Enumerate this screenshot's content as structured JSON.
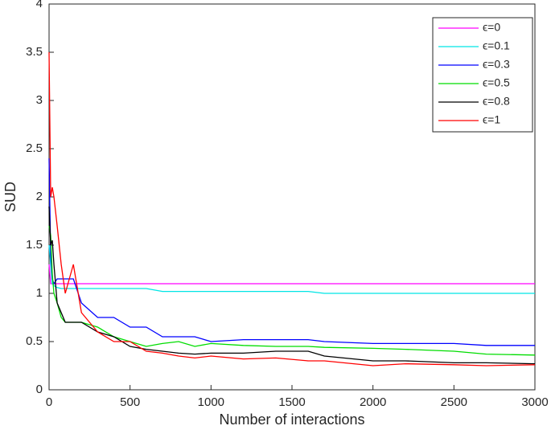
{
  "chart_data": {
    "type": "line",
    "xlabel": "Number of interactions",
    "ylabel": "SUD",
    "x": [
      0,
      10,
      20,
      30,
      50,
      75,
      100,
      150,
      200,
      300,
      400,
      500,
      600,
      700,
      800,
      900,
      1000,
      1200,
      1400,
      1600,
      1700,
      2000,
      2200,
      2500,
      2700,
      3000
    ],
    "xlim": [
      0,
      3000
    ],
    "xticks": [
      0,
      500,
      1000,
      1500,
      2000,
      2500,
      3000
    ],
    "ylim": [
      0,
      4
    ],
    "yticks": [
      0,
      0.5,
      1,
      1.5,
      2,
      2.5,
      3,
      3.5,
      4
    ],
    "grid": false,
    "legend": "northeast",
    "series": [
      {
        "name": "ϵ=0",
        "color": "#ff00ff",
        "values": [
          1.3,
          1.1,
          1.1,
          1.1,
          1.1,
          1.1,
          1.1,
          1.1,
          1.1,
          1.1,
          1.1,
          1.1,
          1.1,
          1.1,
          1.1,
          1.1,
          1.1,
          1.1,
          1.1,
          1.1,
          1.1,
          1.1,
          1.1,
          1.1,
          1.1,
          1.1
        ]
      },
      {
        "name": "ϵ=0.1",
        "color": "#00e5e5",
        "values": [
          1.5,
          1.3,
          1.1,
          1.08,
          1.06,
          1.05,
          1.05,
          1.05,
          1.05,
          1.05,
          1.05,
          1.05,
          1.05,
          1.02,
          1.02,
          1.02,
          1.02,
          1.02,
          1.02,
          1.02,
          1.0,
          1.0,
          1.0,
          1.0,
          1.0,
          1.0
        ]
      },
      {
        "name": "ϵ=0.3",
        "color": "#0000ff",
        "values": [
          2.4,
          1.4,
          1.15,
          1.1,
          1.15,
          1.15,
          1.15,
          1.15,
          0.9,
          0.75,
          0.75,
          0.65,
          0.65,
          0.55,
          0.55,
          0.55,
          0.5,
          0.52,
          0.52,
          0.52,
          0.5,
          0.48,
          0.48,
          0.48,
          0.46,
          0.46
        ]
      },
      {
        "name": "ϵ=0.5",
        "color": "#00dd00",
        "values": [
          1.7,
          1.6,
          1.2,
          1.0,
          0.9,
          0.75,
          0.7,
          0.7,
          0.7,
          0.65,
          0.55,
          0.5,
          0.45,
          0.48,
          0.5,
          0.45,
          0.48,
          0.46,
          0.45,
          0.45,
          0.44,
          0.43,
          0.42,
          0.4,
          0.37,
          0.36
        ]
      },
      {
        "name": "ϵ=0.8",
        "color": "#000000",
        "values": [
          1.9,
          1.5,
          1.55,
          1.3,
          0.9,
          0.8,
          0.7,
          0.7,
          0.7,
          0.6,
          0.55,
          0.45,
          0.42,
          0.4,
          0.38,
          0.37,
          0.38,
          0.38,
          0.4,
          0.4,
          0.35,
          0.3,
          0.3,
          0.28,
          0.28,
          0.27
        ]
      },
      {
        "name": "ϵ=1",
        "color": "#ff0000",
        "values": [
          3.5,
          2.0,
          2.1,
          2.0,
          1.7,
          1.3,
          1.0,
          1.3,
          0.8,
          0.6,
          0.5,
          0.5,
          0.4,
          0.38,
          0.35,
          0.33,
          0.35,
          0.32,
          0.33,
          0.3,
          0.3,
          0.25,
          0.27,
          0.26,
          0.25,
          0.26
        ]
      }
    ]
  }
}
